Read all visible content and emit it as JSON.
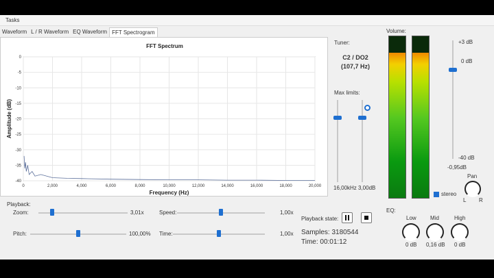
{
  "menu": {
    "tasks": "Tasks"
  },
  "tabs": [
    {
      "label": "Waveform",
      "active": false
    },
    {
      "label": "L / R Waveform",
      "active": false
    },
    {
      "label": "EQ Waveform",
      "active": false
    },
    {
      "label": "FFT Spectrogram",
      "active": true
    }
  ],
  "chart_data": {
    "type": "line",
    "title": "FFT Spectrum",
    "xlabel": "Frequency (Hz)",
    "ylabel": "Amplitude (dB)",
    "xlim": [
      0,
      20000
    ],
    "ylim": [
      -40,
      0
    ],
    "x_ticks": [
      "0",
      "2,000",
      "4,000",
      "6,000",
      "8,000",
      "10,000",
      "12,000",
      "14,000",
      "16,000",
      "18,000",
      "20,000"
    ],
    "y_ticks": [
      "0",
      "-5",
      "-10",
      "-15",
      "-20",
      "-25",
      "-30",
      "-35",
      "-40"
    ],
    "grid": true,
    "series": [
      {
        "color": "#5a6e9a",
        "x": [
          50,
          100,
          150,
          200,
          300,
          400,
          600,
          800,
          1200,
          2000,
          3000,
          4000,
          6000,
          8000,
          10000,
          12000,
          14000,
          16000,
          18000,
          20000
        ],
        "y": [
          -32,
          -36,
          -34,
          -37,
          -35,
          -38,
          -37,
          -38.5,
          -38,
          -39,
          -39.2,
          -39.3,
          -39.5,
          -39.6,
          -39.7,
          -39.7,
          -39.8,
          -39.8,
          -39.9,
          -39.9
        ]
      }
    ]
  },
  "tuner": {
    "label": "Tuner:",
    "note": "C2 / DO2",
    "freq": "(107,7 Hz)"
  },
  "max_limits": {
    "label": "Max limits:",
    "freq_value": "16,00kHz",
    "db_value": "3,00dB",
    "freq_level": 0.78,
    "db_level": 0.78
  },
  "volume": {
    "label": "Volume:",
    "scale_top": "+3 dB",
    "scale_zero": "0 dB",
    "scale_bottom": "-40 dB",
    "current_db": "-0,95dB",
    "left_level": 0.9,
    "right_level": 0.9,
    "slider_level": 0.75
  },
  "stereo": {
    "label": "stereo",
    "checked": true
  },
  "pan": {
    "label": "Pan",
    "left": "L",
    "right": "R"
  },
  "playback": {
    "label": "Playback:",
    "zoom_label": "Zoom:",
    "zoom_value": "3,01x",
    "zoom_level": 0.15,
    "speed_label": "Speed:",
    "speed_value": "1,00x",
    "speed_level": 0.5,
    "pitch_label": "Pitch:",
    "pitch_value": "100,00%",
    "pitch_level": 0.5,
    "time_label": "Time:",
    "time_value": "1,00x",
    "time_level": 0.5
  },
  "playback_state": {
    "label": "Playback state:",
    "samples": "Samples: 3180544",
    "time": "Time: 00:01:12"
  },
  "eq": {
    "label": "EQ:",
    "bands": [
      {
        "name": "Low",
        "value": "0 dB"
      },
      {
        "name": "Mid",
        "value": "0,16 dB"
      },
      {
        "name": "High",
        "value": "0 dB"
      }
    ]
  }
}
